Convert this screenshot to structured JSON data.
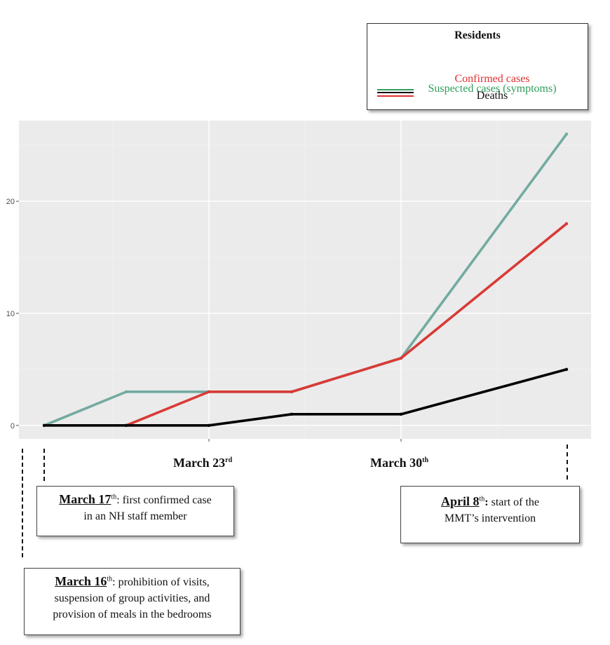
{
  "legend": {
    "title": "Residents",
    "items": [
      {
        "label": "Suspected cases (symptoms)",
        "color": "#2e9e5b"
      },
      {
        "label": "Confirmed cases",
        "color": "#e03030"
      },
      {
        "label": "Deaths",
        "color": "#111111"
      }
    ]
  },
  "chart_data": {
    "type": "line",
    "x": [
      0,
      1,
      2,
      3,
      4,
      5
    ],
    "ylim": [
      -1.2,
      27.2
    ],
    "yticks": [
      0,
      10,
      20
    ],
    "grid": true,
    "legend_position": "top-right",
    "series": [
      {
        "name": "Suspected cases (symptoms)",
        "color": "#72aba0",
        "values": [
          0,
          3,
          3,
          3,
          6,
          26
        ]
      },
      {
        "name": "Confirmed cases",
        "color": "#d93a36",
        "x_start": 1,
        "values": [
          null,
          0,
          3,
          3,
          6,
          18
        ]
      },
      {
        "name": "Deaths",
        "color": "#000000",
        "values": [
          0,
          0,
          0,
          1,
          1,
          5
        ]
      }
    ]
  },
  "axis_dates": [
    {
      "main": "March 23",
      "suffix": "rd"
    },
    {
      "main": "March 30",
      "suffix": "th"
    }
  ],
  "events": {
    "march17": {
      "date": "March 17",
      "suffix": "th",
      "text_a": ": first confirmed case",
      "text_b": "in an NH staff member"
    },
    "april8": {
      "date": "April 8",
      "suffix": "th",
      "text_a": " start of the",
      "colon": ":",
      "text_b": "MMT’s intervention"
    },
    "march16": {
      "date": "March 16",
      "suffix": "th",
      "text_a": ": prohibition of visits,",
      "text_b": "suspension of group activities, and",
      "text_c": "provision of meals in the bedrooms"
    }
  }
}
